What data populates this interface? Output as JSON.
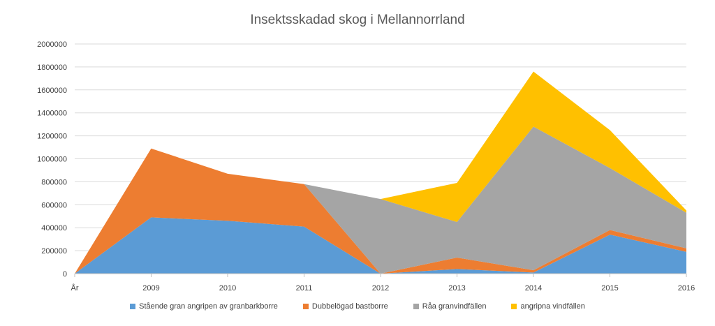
{
  "chart_data": {
    "type": "area",
    "stacked": true,
    "title": "Insektsskadad skog i Mellannorrland",
    "xlabel": "",
    "ylabel": "",
    "categories": [
      "År",
      "2009",
      "2010",
      "2011",
      "2012",
      "2013",
      "2014",
      "2015",
      "2016"
    ],
    "ylim": [
      0,
      2000000
    ],
    "yticks": [
      "0",
      "200000",
      "400000",
      "600000",
      "800000",
      "1000000",
      "1200000",
      "1400000",
      "1600000",
      "1800000",
      "2000000"
    ],
    "grid": true,
    "legend_position": "bottom",
    "series": [
      {
        "name": "Stående gran angripen av granbarkborre",
        "color": "#5B9BD5",
        "values": [
          0,
          490000,
          460000,
          410000,
          0,
          40000,
          10000,
          340000,
          190000
        ]
      },
      {
        "name": "Dubbelögad bastborre",
        "color": "#ED7D31",
        "values": [
          0,
          600000,
          410000,
          370000,
          0,
          100000,
          20000,
          40000,
          30000
        ]
      },
      {
        "name": "Råa granvindfällen",
        "color": "#A5A5A5",
        "values": [
          0,
          0,
          0,
          0,
          650000,
          310000,
          1250000,
          540000,
          310000
        ]
      },
      {
        "name": "angripna vindfällen",
        "color": "#FFC000",
        "values": [
          0,
          0,
          0,
          0,
          0,
          340000,
          480000,
          330000,
          20000
        ]
      }
    ]
  }
}
